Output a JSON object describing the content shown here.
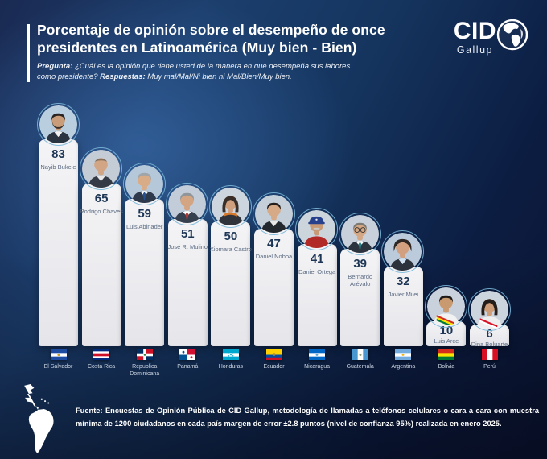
{
  "header": {
    "title": "Porcentaje de opinión sobre el desempeño de once presidentes en Latinoamérica (Muy bien - Bien)",
    "question_label": "Pregunta:",
    "question_text": " ¿Cuál es la opinión que tiene usted de la manera en que desempeña sus labores como presidente? ",
    "answers_label": "Respuestas:",
    "answers_text": " Muy mal/Mal/Ni bien ni Mal/Bien/Muy bien."
  },
  "logo": {
    "brand": "CID",
    "brand_sub": "Gallup",
    "icon": "americas-globe-icon"
  },
  "chart_data": {
    "type": "bar",
    "title": "Porcentaje de opinión sobre el desempeño de once presidentes en Latinoamérica (Muy bien - Bien)",
    "ylim": [
      0,
      100
    ],
    "grid": false,
    "legend": "none",
    "bar_color": "#e9e9ed",
    "value_label_color": "#1e3655",
    "categories": [
      "El Salvador",
      "Costa Rica",
      "Republica Dominicana",
      "Panamá",
      "Honduras",
      "Ecuador",
      "Nicaragua",
      "Guatemala",
      "Argentina",
      "Bolivia",
      "Perú"
    ],
    "values": [
      83,
      65,
      59,
      51,
      50,
      47,
      41,
      39,
      32,
      10,
      6
    ],
    "items": [
      {
        "country": "El Salvador",
        "president": "Nayib Bukele",
        "value": 83,
        "flag": "el-salvador",
        "avatar": {
          "bg": "#b9cfdf",
          "skin": "#c99d79",
          "hair": "#2a2320",
          "top": "#2b3541",
          "shirt": "#f2f2f2",
          "beard": true
        }
      },
      {
        "country": "Costa Rica",
        "president": "Rodrigo Chaves",
        "value": 65,
        "flag": "costa-rica",
        "avatar": {
          "bg": "#c4ccd6",
          "skin": "#d2a684",
          "hair": "#6b5d50",
          "top": "#343b47",
          "shirt": "#e8e8e8",
          "bald": true
        }
      },
      {
        "country": "Republica Dominicana",
        "president": "Luis Abinader",
        "value": 59,
        "flag": "republica-dominicana",
        "avatar": {
          "bg": "#b5c8da",
          "skin": "#d9ac88",
          "hair": "#9fa5a9",
          "top": "#2e3a4b",
          "shirt": "#ffffff",
          "tie": "#27518f"
        }
      },
      {
        "country": "Panamá",
        "president": "José R. Mulino",
        "value": 51,
        "flag": "panama",
        "avatar": {
          "bg": "#c2cdd9",
          "skin": "#d3a583",
          "hair": "#8f9598",
          "top": "#37404e",
          "shirt": "#ffffff",
          "tie": "#b03a35"
        }
      },
      {
        "country": "Honduras",
        "president": "Xiomara Castro",
        "value": 50,
        "flag": "honduras",
        "avatar": {
          "bg": "#cdd5de",
          "skin": "#cf9f7e",
          "hair": "#3a2e28",
          "top": "#30333a",
          "female": true,
          "scarf": "#d97a2a"
        }
      },
      {
        "country": "Ecuador",
        "president": "Daniel Noboa",
        "value": 47,
        "flag": "ecuador",
        "avatar": {
          "bg": "#c4cfda",
          "skin": "#d6a987",
          "hair": "#241f1c",
          "top": "#23282f",
          "shirt": "#e8e8e8"
        }
      },
      {
        "country": "Nicaragua",
        "president": "Daniel Ortega",
        "value": 41,
        "flag": "nicaragua",
        "avatar": {
          "bg": "#ccd4dc",
          "skin": "#c99a76",
          "hair": "#999999",
          "top": "#b22a28",
          "cap": "#27418c",
          "mustache": "#c9c9c9"
        }
      },
      {
        "country": "Guatemala",
        "president": "Bernardo Arévalo",
        "value": 39,
        "flag": "guatemala",
        "avatar": {
          "bg": "#c8d1db",
          "skin": "#d5a885",
          "hair": "#7d7a74",
          "top": "#2c3440",
          "shirt": "#ffffff",
          "tie": "#2c7f86",
          "glasses": true
        }
      },
      {
        "country": "Argentina",
        "president": "Javier Milei",
        "value": 32,
        "flag": "argentina",
        "avatar": {
          "bg": "#bccbdb",
          "skin": "#d2a07f",
          "hair": "#2e2723",
          "top": "#2b323c",
          "shirt": "#cfe0ee",
          "bighair": true
        }
      },
      {
        "country": "Bolivia",
        "president": "Luis Arce",
        "value": 10,
        "flag": "bolivia",
        "avatar": {
          "bg": "#c9d2dc",
          "skin": "#c9996f",
          "hair": "#1f1a17",
          "top": "#f2f2f2",
          "sash": [
            "#d52b1e",
            "#f9e300",
            "#007934"
          ]
        }
      },
      {
        "country": "Perú",
        "president": "Dina Boluarte",
        "value": 6,
        "flag": "peru",
        "avatar": {
          "bg": "#ccd4dd",
          "skin": "#cf9d78",
          "hair": "#241d19",
          "top": "#eeeeee",
          "female": true,
          "sash": [
            "#d91023",
            "#ffffff"
          ]
        }
      }
    ]
  },
  "footer": {
    "source_label": "Fuente:",
    "source_text": " Encuestas de Opinión Pública de CID Gallup, metodología de llamadas a teléfonos celulares o cara a cara con muestra mínima de 1200 ciudadanos en cada país margen de error ±2.8 puntos (nivel de confianza 95%) realizada en enero 2025.",
    "map_icon": "latin-america-map-icon"
  }
}
